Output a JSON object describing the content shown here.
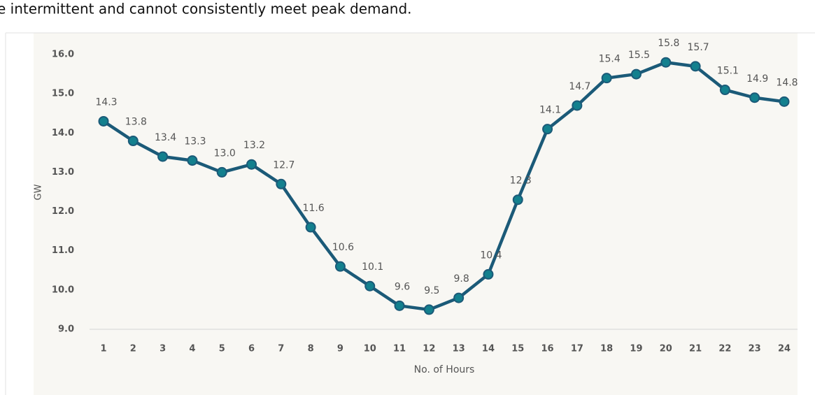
{
  "caption": "e intermittent and cannot consistently meet peak demand.",
  "chart_data": {
    "type": "line",
    "x_label": "No. of Hours",
    "y_label": "GW",
    "categories": [
      "1",
      "2",
      "3",
      "4",
      "5",
      "6",
      "7",
      "8",
      "9",
      "10",
      "11",
      "12",
      "13",
      "14",
      "15",
      "16",
      "17",
      "18",
      "19",
      "20",
      "21",
      "22",
      "23",
      "24"
    ],
    "values": [
      14.3,
      13.8,
      13.4,
      13.3,
      13.0,
      13.2,
      12.7,
      11.6,
      10.6,
      10.1,
      9.6,
      9.5,
      9.8,
      10.4,
      12.3,
      14.1,
      14.7,
      15.4,
      15.5,
      15.8,
      15.7,
      15.1,
      14.9,
      14.8
    ],
    "value_labels": [
      "14.3",
      "13.8",
      "13.4",
      "13.3",
      "13.0",
      "13.2",
      "12.7",
      "11.6",
      "10.6",
      "10.1",
      "9.6",
      "9.5",
      "9.8",
      "10.4",
      "12.3",
      "14.1",
      "14.7",
      "15.4",
      "15.5",
      "15.8",
      "15.7",
      "15.1",
      "14.9",
      "14.8"
    ],
    "color": "#1b5a78",
    "marker_color": "#13808e",
    "ylim": [
      9,
      16
    ],
    "yticks": [
      {
        "value": 9,
        "label": "9.0"
      },
      {
        "value": 10,
        "label": "10.0"
      },
      {
        "value": 11,
        "label": "11.0"
      },
      {
        "value": 12,
        "label": "12.0"
      },
      {
        "value": 13,
        "label": "13.0"
      },
      {
        "value": 14,
        "label": "14.0"
      },
      {
        "value": 15,
        "label": "15.0"
      },
      {
        "value": 16,
        "label": "16.0"
      }
    ]
  }
}
